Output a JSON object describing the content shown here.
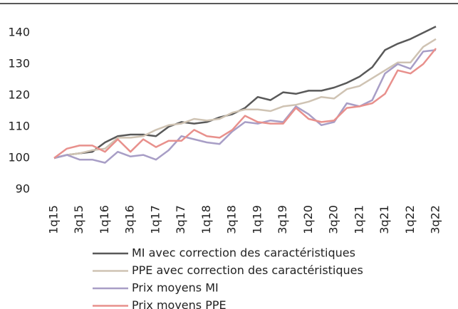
{
  "chart_data": {
    "type": "line",
    "categories": [
      "1q15",
      null,
      "3q15",
      null,
      "1q16",
      null,
      "3q16",
      null,
      "1q17",
      null,
      "3q17",
      null,
      "1q18",
      null,
      "3q18",
      null,
      "1q19",
      null,
      "3q19",
      null,
      "1q20",
      null,
      "3q20",
      null,
      "1q21",
      null,
      "3q21",
      null,
      "1q22",
      null,
      "3q22"
    ],
    "series": [
      {
        "name": "MI avec correction des caractéristiques",
        "color": "#595959",
        "values": [
          100,
          101,
          101.5,
          102,
          105,
          107,
          107.5,
          107.5,
          107,
          110,
          111.5,
          111,
          111.5,
          113,
          114,
          116,
          119.5,
          118.5,
          121,
          120.5,
          121.5,
          121.5,
          122.5,
          124,
          126,
          129,
          134.5,
          136.5,
          138,
          140,
          142
        ]
      },
      {
        "name": "PPE avec correction des caractéristiques",
        "color": "#cfc3b3",
        "values": [
          100,
          101,
          101.5,
          102.5,
          103,
          106.5,
          106.5,
          107,
          109,
          110.5,
          111,
          112.5,
          112,
          112.5,
          114.5,
          115.5,
          115.5,
          115,
          116.5,
          117,
          118,
          119.5,
          119,
          122,
          123,
          125.5,
          128,
          130.5,
          130.5,
          135.5,
          138
        ]
      },
      {
        "name": "Prix moyens MI",
        "color": "#a89ec6",
        "values": [
          100,
          101,
          99.5,
          99.5,
          98.5,
          102,
          100.5,
          101,
          99.5,
          102.5,
          107,
          106,
          105,
          104.5,
          108.5,
          111.5,
          111,
          112,
          111.5,
          116.5,
          114,
          110.5,
          111.5,
          117.5,
          116.5,
          118.5,
          127,
          130,
          128.5,
          134,
          134.5
        ]
      },
      {
        "name": "Prix moyens PPE",
        "color": "#e8908c",
        "values": [
          100,
          103,
          104,
          104,
          102,
          106,
          102,
          106,
          103.5,
          105.5,
          105.5,
          109,
          107,
          106.5,
          109,
          113.5,
          111.5,
          111,
          111,
          116,
          112.5,
          111.5,
          112,
          116,
          116.5,
          117.5,
          120.5,
          128,
          127,
          130,
          135
        ]
      }
    ],
    "ylim": [
      90,
      145
    ],
    "yticks": [
      90,
      100,
      110,
      120,
      130,
      140
    ],
    "grid": false
  }
}
